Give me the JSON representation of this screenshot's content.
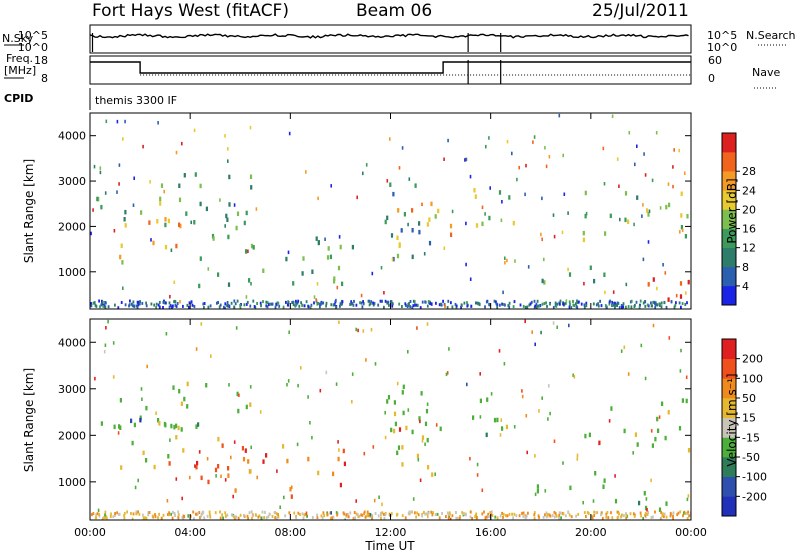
{
  "header": {
    "site": "Fort Hays West (fitACF)",
    "beam": "Beam 06",
    "date": "25/Jul/2011"
  },
  "strip": {
    "nsky_label": "N.Sky",
    "nsky_ticks": [
      "10^5",
      "10^0"
    ],
    "nsearch_label": "N.Search",
    "nsearch_ticks": [
      "10^5",
      "10^0"
    ],
    "freq_label_1": "Freq.",
    "freq_label_2": "[MHz]",
    "freq_ticks": [
      "18",
      "8"
    ],
    "nave_label": "Nave",
    "nave_ticks": [
      "60",
      "0"
    ],
    "cpid_label": "CPID",
    "cpid_value": "themis 3300 IF"
  },
  "chart_data": [
    {
      "type": "heatmap",
      "name": "power-panel",
      "ylabel": "Slant Range [km]",
      "yticks": [
        "1000",
        "2000",
        "3000",
        "4000"
      ],
      "ylim": [
        180,
        4500
      ],
      "xlim": [
        0,
        24
      ],
      "colorbar": {
        "label": "Power [dB]",
        "ticks": [
          "4",
          "8",
          "12",
          "16",
          "20",
          "24",
          "28"
        ],
        "colors": [
          "#1a23e6",
          "#2b5fb0",
          "#2e7d6a",
          "#3c9a5a",
          "#7dbf4f",
          "#e8c930",
          "#f59b25",
          "#f0641e",
          "#dc2020"
        ]
      },
      "bands": [
        {
          "t0": 0.0,
          "t1": 2.8,
          "r0": 2200,
          "r1": 2950,
          "lev": 0.45
        },
        {
          "t0": 0.6,
          "t1": 3.6,
          "r0": 1250,
          "r1": 2400,
          "lev": 0.7
        },
        {
          "t0": 2.6,
          "t1": 6.4,
          "r0": 1700,
          "r1": 3200,
          "lev": 0.35
        },
        {
          "t0": 4.2,
          "t1": 10.6,
          "r0": 700,
          "r1": 1850,
          "lev": 0.4
        },
        {
          "t0": 11.6,
          "t1": 13.8,
          "r0": 1200,
          "r1": 3100,
          "lev": 0.3
        },
        {
          "t0": 12.0,
          "t1": 14.6,
          "r0": 1500,
          "r1": 2600,
          "lev": 0.65
        },
        {
          "t0": 15.1,
          "t1": 17.1,
          "r0": 1900,
          "r1": 2900,
          "lev": 0.5
        },
        {
          "t0": 17.6,
          "t1": 20.6,
          "r0": 800,
          "r1": 1300,
          "lev": 0.3
        },
        {
          "t0": 19.5,
          "t1": 24.0,
          "r0": 1700,
          "r1": 2800,
          "lev": 0.5
        },
        {
          "t0": 20.8,
          "t1": 24.0,
          "r0": 400,
          "r1": 900,
          "lev": 0.85
        }
      ]
    },
    {
      "type": "heatmap",
      "name": "velocity-panel",
      "ylabel": "Slant Range [km]",
      "yticks": [
        "1000",
        "2000",
        "3000",
        "4000"
      ],
      "ylim": [
        180,
        4500
      ],
      "xlim": [
        0,
        24
      ],
      "xlabel": "Time UT",
      "xticks": [
        "00:00",
        "04:00",
        "08:00",
        "12:00",
        "16:00",
        "20:00",
        "00:00"
      ],
      "colorbar": {
        "label": "Velocity [m s⁻¹]",
        "ticks": [
          "200",
          "100",
          "50",
          "15",
          "-15",
          "-50",
          "-100",
          "-200"
        ],
        "colors": [
          "#2130b8",
          "#2e4fae",
          "#2e7d5a",
          "#4caf3a",
          "#c8c4b8",
          "#e6b830",
          "#f08a1c",
          "#f0501c",
          "#e02020"
        ]
      },
      "bands": [
        {
          "t0": 0.0,
          "t1": 2.8,
          "r0": 2200,
          "r1": 2950,
          "lev": 0.44
        },
        {
          "t0": 0.6,
          "t1": 3.6,
          "r0": 1250,
          "r1": 2400,
          "lev": 0.5
        },
        {
          "t0": 2.6,
          "t1": 6.4,
          "r0": 1700,
          "r1": 3200,
          "lev": 0.56
        },
        {
          "t0": 4.2,
          "t1": 10.6,
          "r0": 700,
          "r1": 1850,
          "lev": 0.78
        },
        {
          "t0": 11.6,
          "t1": 13.8,
          "r0": 1200,
          "r1": 3100,
          "lev": 0.44
        },
        {
          "t0": 12.0,
          "t1": 14.6,
          "r0": 1500,
          "r1": 2600,
          "lev": 0.44
        },
        {
          "t0": 15.1,
          "t1": 17.1,
          "r0": 1900,
          "r1": 2900,
          "lev": 0.44
        },
        {
          "t0": 17.6,
          "t1": 20.6,
          "r0": 800,
          "r1": 1300,
          "lev": 0.44
        },
        {
          "t0": 19.5,
          "t1": 24.0,
          "r0": 1700,
          "r1": 2800,
          "lev": 0.44
        },
        {
          "t0": 20.8,
          "t1": 24.0,
          "r0": 400,
          "r1": 900,
          "lev": 0.44
        }
      ]
    }
  ]
}
